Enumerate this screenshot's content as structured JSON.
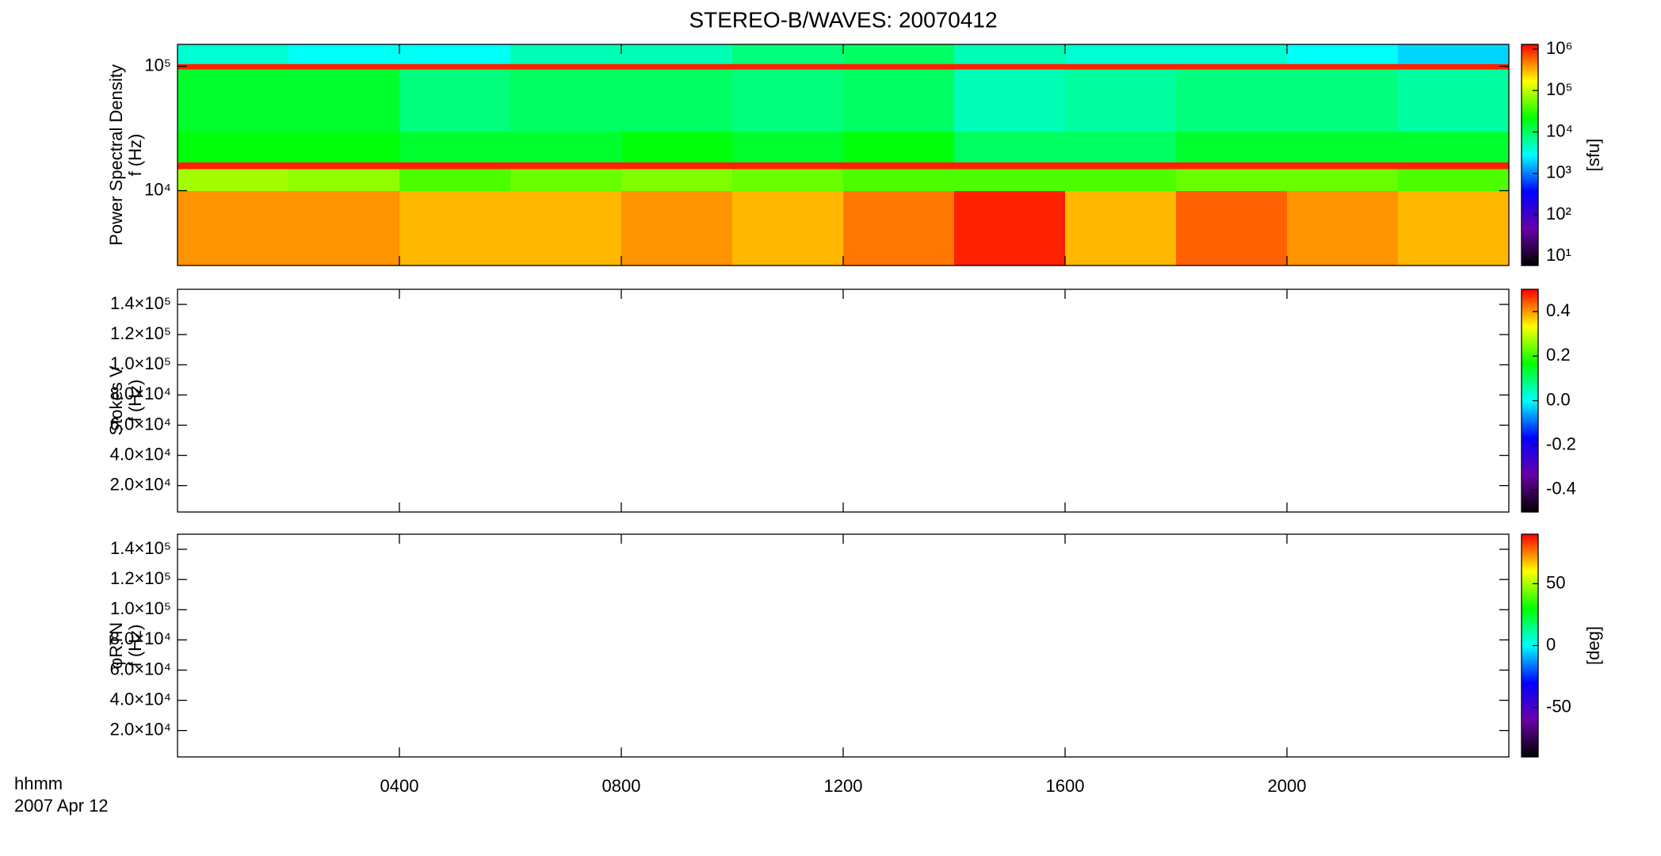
{
  "chart_data": [
    {
      "type": "heatmap",
      "title": "STEREO-B/WAVES: 20070412",
      "ylabel": [
        "Power Spectral Density",
        "f (Hz)"
      ],
      "yscale": "log",
      "ylim": [
        2500,
        150000
      ],
      "yticks": [
        {
          "value": 10000,
          "label": "10⁴"
        },
        {
          "value": 100000,
          "label": "10⁵"
        }
      ],
      "xbins": [
        0,
        2,
        4,
        6,
        8,
        10,
        12,
        14,
        16,
        18,
        20,
        22,
        24
      ],
      "ybins": [
        2500,
        10000,
        15000,
        17000,
        30000,
        95000,
        105000,
        150000
      ],
      "values": [
        [
          400000,
          400000,
          300000,
          300000,
          400000,
          300000,
          500000,
          1000000,
          300000,
          600000,
          400000,
          300000
        ],
        [
          80000,
          70000,
          40000,
          50000,
          60000,
          50000,
          40000,
          40000,
          40000,
          50000,
          50000,
          40000
        ],
        [
          1000000,
          1000000,
          1000000,
          1000000,
          1000000,
          1000000,
          1000000,
          1000000,
          1000000,
          1000000,
          1000000,
          1000000
        ],
        [
          20000,
          20000,
          15000,
          15000,
          20000,
          15000,
          20000,
          10000,
          10000,
          15000,
          15000,
          15000
        ],
        [
          15000,
          15000,
          8000,
          10000,
          10000,
          8000,
          10000,
          5000,
          6000,
          8000,
          8000,
          6000
        ],
        [
          1000000,
          1000000,
          1000000,
          1000000,
          1000000,
          1000000,
          1000000,
          1000000,
          1000000,
          1000000,
          1000000,
          1000000
        ],
        [
          4000,
          3000,
          3000,
          5000,
          5000,
          8000,
          10000,
          5000,
          4000,
          4000,
          3000,
          2000
        ]
      ],
      "colormap": [
        "#000000",
        "#6a00a8",
        "#0000ff",
        "#00ffff",
        "#00ff00",
        "#ffff00",
        "#ff0000"
      ],
      "cscale": "log",
      "clim": [
        6,
        1300000
      ],
      "cticks": [
        {
          "value": 10,
          "label": "10¹"
        },
        {
          "value": 100,
          "label": "10²"
        },
        {
          "value": 1000,
          "label": "10³"
        },
        {
          "value": 10000,
          "label": "10⁴"
        },
        {
          "value": 100000,
          "label": "10⁵"
        },
        {
          "value": 1000000,
          "label": "10⁶"
        }
      ],
      "clabel": "[sfu]"
    },
    {
      "type": "heatmap",
      "ylabel": [
        "Stokes V",
        "f (Hz)"
      ],
      "yscale": "linear",
      "ylim": [
        2500,
        150000
      ],
      "yticks": [
        {
          "value": 20000,
          "label": "2.0×10⁴"
        },
        {
          "value": 40000,
          "label": "4.0×10⁴"
        },
        {
          "value": 60000,
          "label": "6.0×10⁴"
        },
        {
          "value": 80000,
          "label": "8.0×10⁴"
        },
        {
          "value": 100000,
          "label": "1.0×10⁵"
        },
        {
          "value": 120000,
          "label": "1.2×10⁵"
        },
        {
          "value": 140000,
          "label": "1.4×10⁵"
        }
      ],
      "colormap": [
        "#000000",
        "#6a00a8",
        "#0000ff",
        "#00ffff",
        "#00ff00",
        "#ffff00",
        "#ff0000"
      ],
      "cscale": "linear",
      "clim": [
        -0.5,
        0.5
      ],
      "cticks": [
        -0.4,
        -0.2,
        {
          "value": 0,
          "label": "0.0"
        },
        0.2,
        0.4
      ]
    },
    {
      "type": "heatmap",
      "ylabel": [
        "φRTN",
        "f (Hz)"
      ],
      "yscale": "linear",
      "ylim": [
        2500,
        150000
      ],
      "yticks": [
        {
          "value": 20000,
          "label": "2.0×10⁴"
        },
        {
          "value": 40000,
          "label": "4.0×10⁴"
        },
        {
          "value": 60000,
          "label": "6.0×10⁴"
        },
        {
          "value": 80000,
          "label": "8.0×10⁴"
        },
        {
          "value": 100000,
          "label": "1.0×10⁵"
        },
        {
          "value": 120000,
          "label": "1.2×10⁵"
        },
        {
          "value": 140000,
          "label": "1.4×10⁵"
        }
      ],
      "colormap": [
        "#000000",
        "#6a00a8",
        "#0000ff",
        "#00ffff",
        "#00ff00",
        "#ffff00",
        "#ff0000"
      ],
      "cscale": "linear",
      "clim": [
        -90,
        90
      ],
      "cticks": [
        -50,
        0,
        50
      ],
      "clabel": "[deg]",
      "xlim": [
        0,
        24
      ],
      "xticks": [
        {
          "value": 4,
          "label": "0400"
        },
        {
          "value": 8,
          "label": "0800"
        },
        {
          "value": 12,
          "label": "1200"
        },
        {
          "value": 16,
          "label": "1600"
        },
        {
          "value": 20,
          "label": "2000"
        }
      ],
      "xlabel": "hhmm",
      "xsublabel": "2007 Apr 12"
    }
  ]
}
